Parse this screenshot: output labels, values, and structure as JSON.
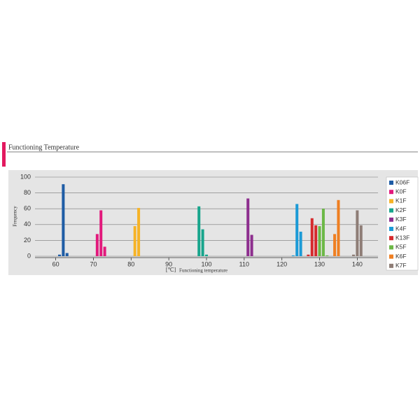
{
  "header": {
    "title": "Functioning Temperature"
  },
  "chart_data": {
    "type": "bar",
    "y_label": "Frequency",
    "x_unit": "[℃]",
    "x_label": "Functioning temperature",
    "xlim": [
      54.5,
      145.5
    ],
    "ylim": [
      0,
      100
    ],
    "xticks": [
      60,
      70,
      80,
      90,
      100,
      110,
      120,
      130,
      140
    ],
    "yticks": [
      0,
      20,
      40,
      60,
      80,
      100
    ],
    "grid": true,
    "legend": "right",
    "series": [
      {
        "name": "K06F",
        "color": "#1e5ca5",
        "x": [
          61,
          62,
          63
        ],
        "values": [
          2,
          91,
          4
        ]
      },
      {
        "name": "K0F",
        "color": "#e2197c",
        "x": [
          71,
          72,
          73
        ],
        "values": [
          28,
          58,
          12
        ]
      },
      {
        "name": "K1F",
        "color": "#f6b326",
        "x": [
          81,
          82
        ],
        "values": [
          38,
          61
        ]
      },
      {
        "name": "K2F",
        "color": "#17a58c",
        "x": [
          98,
          99,
          100
        ],
        "values": [
          63,
          34,
          2
        ]
      },
      {
        "name": "K3F",
        "color": "#8d2e8e",
        "x": [
          111,
          112
        ],
        "values": [
          73,
          27
        ]
      },
      {
        "name": "K4F",
        "color": "#1b9ad6",
        "x": [
          123,
          124,
          125
        ],
        "values": [
          1,
          66,
          31
        ]
      },
      {
        "name": "K13F",
        "color": "#d62a2d",
        "x": [
          127,
          128,
          129,
          130
        ],
        "values": [
          2,
          48,
          39,
          8
        ]
      },
      {
        "name": "K5F",
        "color": "#6cb846",
        "x": [
          130,
          131,
          132
        ],
        "values": [
          38,
          60,
          1
        ]
      },
      {
        "name": "K6F",
        "color": "#ef7f22",
        "x": [
          134,
          135
        ],
        "values": [
          28,
          71
        ]
      },
      {
        "name": "K7F",
        "color": "#8e7d76",
        "x": [
          139,
          140,
          141
        ],
        "values": [
          2,
          58,
          39
        ]
      }
    ]
  }
}
